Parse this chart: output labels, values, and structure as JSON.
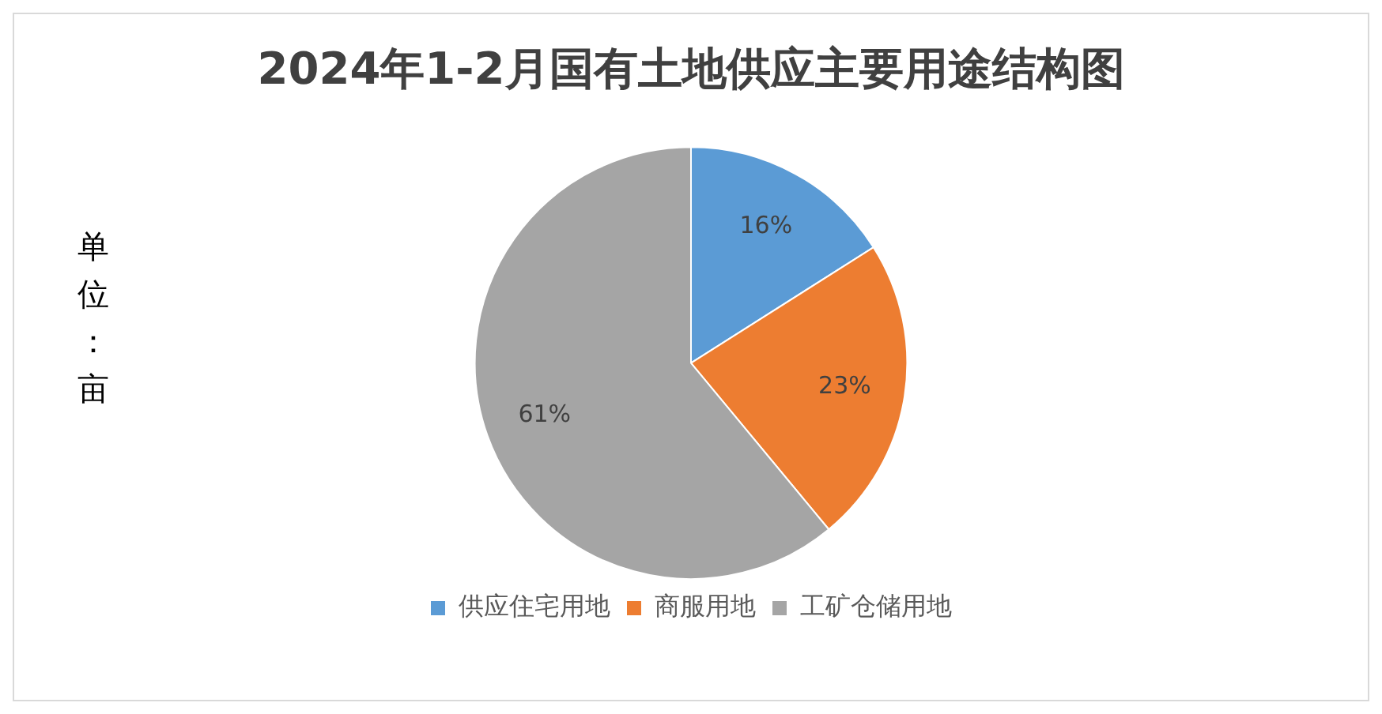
{
  "chart_data": {
    "type": "pie",
    "title": "2024年1-2月国有土地供应主要用途结构图",
    "annotations": [
      "单位：亩"
    ],
    "categories": [
      "供应住宅用地",
      "商服用地",
      "工矿仓储用地"
    ],
    "values": [
      16,
      23,
      61
    ],
    "colors": [
      "#5b9bd5",
      "#ed7d31",
      "#a5a5a5"
    ],
    "value_labels": [
      "16%",
      "23%",
      "61%"
    ],
    "legend": "bottom"
  }
}
